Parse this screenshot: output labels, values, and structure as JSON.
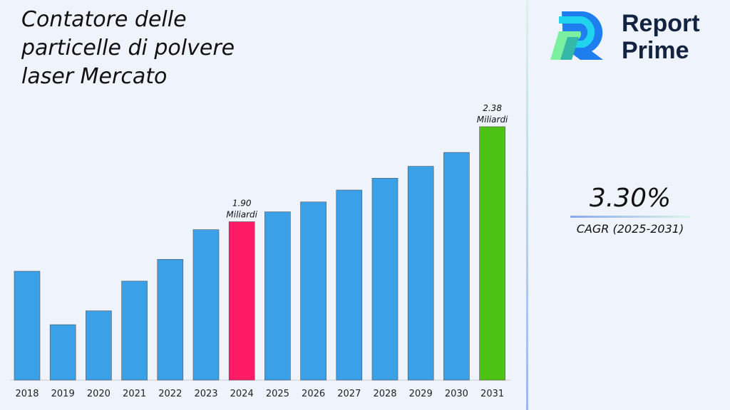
{
  "brand": {
    "line1": "Report",
    "line2": "Prime"
  },
  "cagr": {
    "value": "3.30%",
    "label": "CAGR (2025-2031)"
  },
  "chart_data": {
    "type": "bar",
    "title": "Contatore delle particelle di polvere laser Mercato",
    "categories": [
      "2018",
      "2019",
      "2020",
      "2021",
      "2022",
      "2023",
      "2024",
      "2025",
      "2026",
      "2027",
      "2028",
      "2029",
      "2030",
      "2031"
    ],
    "values": [
      1.65,
      1.38,
      1.45,
      1.6,
      1.71,
      1.86,
      1.9,
      1.95,
      2.0,
      2.06,
      2.12,
      2.18,
      2.25,
      2.38
    ],
    "ylim": [
      1.1,
      2.45
    ],
    "colors": {
      "default": "#3aa0e8",
      "highlight_2024": "#ff1a66",
      "highlight_2031": "#4cc214"
    },
    "annotations": [
      {
        "category": "2024",
        "text": "1.90",
        "unit": "Miliardi"
      },
      {
        "category": "2031",
        "text": "2.38",
        "unit": "Miliardi"
      }
    ],
    "grid": false
  }
}
